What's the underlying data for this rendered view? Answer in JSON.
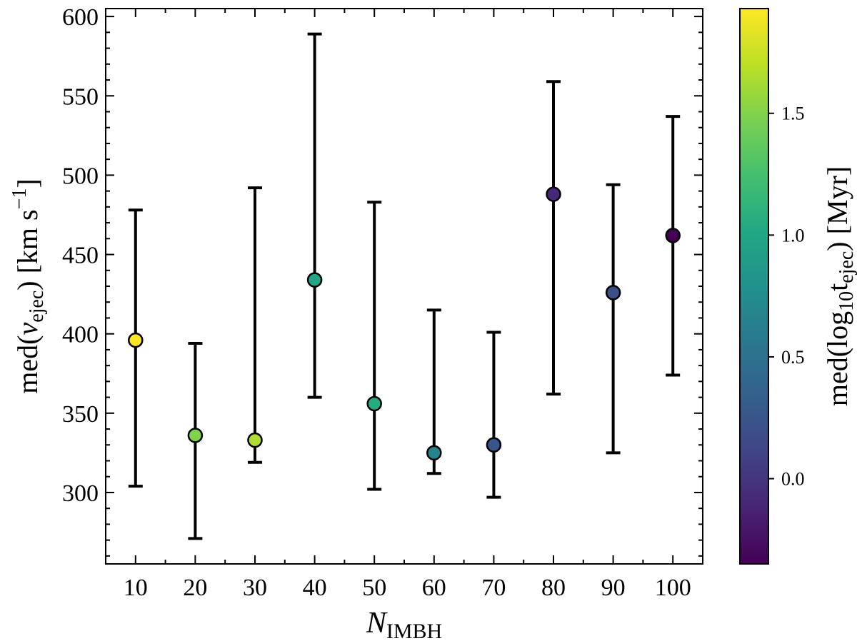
{
  "chart_data": {
    "type": "scatter",
    "xlabel": {
      "main": "N",
      "sub": "IMBH"
    },
    "ylabel": {
      "pre": "med(",
      "var": "v",
      "sub": "ejec",
      "post": ") [km s",
      "sup": "−1",
      "end": "]"
    },
    "colorbar_label": {
      "pre": "med(log",
      "sub1": "10",
      "mid": "t",
      "sub2": "ejec",
      "post": ") [Myr]"
    },
    "xlim": [
      5,
      105
    ],
    "ylim": [
      255,
      605
    ],
    "x_ticks": [
      10,
      20,
      30,
      40,
      50,
      60,
      70,
      80,
      90,
      100
    ],
    "x_tick_labels": [
      "10",
      "20",
      "30",
      "40",
      "50",
      "60",
      "70",
      "80",
      "90",
      "100"
    ],
    "y_ticks": [
      300,
      350,
      400,
      450,
      500,
      550,
      600
    ],
    "y_tick_labels": [
      "300",
      "350",
      "400",
      "450",
      "500",
      "550",
      "600"
    ],
    "colorbar": {
      "range": [
        -0.35,
        1.93
      ],
      "ticks": [
        0.0,
        0.5,
        1.0,
        1.5
      ],
      "tick_labels": [
        "0.0",
        "0.5",
        "1.0",
        "1.5"
      ],
      "colormap": "viridis"
    },
    "points": [
      {
        "x": 10,
        "y": 396,
        "yerr_low": 304,
        "yerr_high": 478,
        "c": 1.93
      },
      {
        "x": 20,
        "y": 336,
        "yerr_low": 271,
        "yerr_high": 394,
        "c": 1.5
      },
      {
        "x": 30,
        "y": 333,
        "yerr_low": 319,
        "yerr_high": 492,
        "c": 1.65
      },
      {
        "x": 40,
        "y": 434,
        "yerr_low": 360,
        "yerr_high": 589,
        "c": 1.0
      },
      {
        "x": 50,
        "y": 356,
        "yerr_low": 302,
        "yerr_high": 483,
        "c": 1.05
      },
      {
        "x": 60,
        "y": 325,
        "yerr_low": 312,
        "yerr_high": 415,
        "c": 0.65
      },
      {
        "x": 70,
        "y": 330,
        "yerr_low": 297,
        "yerr_high": 401,
        "c": 0.25
      },
      {
        "x": 80,
        "y": 488,
        "yerr_low": 362,
        "yerr_high": 559,
        "c": -0.1
      },
      {
        "x": 90,
        "y": 426,
        "yerr_low": 325,
        "yerr_high": 494,
        "c": 0.2
      },
      {
        "x": 100,
        "y": 462,
        "yerr_low": 374,
        "yerr_high": 537,
        "c": -0.35
      }
    ],
    "colors": {
      "errorbar": "#000000",
      "marker_edge": "#000000",
      "axes": "#000000"
    }
  }
}
